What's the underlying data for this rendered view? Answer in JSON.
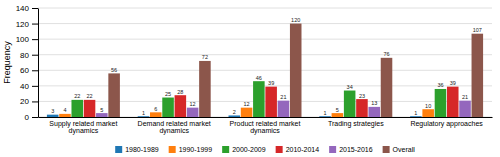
{
  "chart_data": {
    "type": "bar",
    "y_label": "Frequency",
    "categories": [
      "Supply related market dynamics",
      "Demand related market dynamics",
      "Product related market dynamics",
      "Trading strategies",
      "Regulatory approaches"
    ],
    "series": [
      {
        "name": "1980-1989",
        "values": [
          3,
          1,
          2,
          1,
          1
        ]
      },
      {
        "name": "1990-1999",
        "values": [
          4,
          6,
          12,
          5,
          10
        ]
      },
      {
        "name": "2000-2009",
        "values": [
          22,
          25,
          46,
          34,
          36
        ]
      },
      {
        "name": "2010-2014",
        "values": [
          22,
          28,
          39,
          23,
          39
        ]
      },
      {
        "name": "2015-2016",
        "values": [
          5,
          12,
          21,
          13,
          21
        ]
      },
      {
        "name": "Overall",
        "values": [
          56,
          72,
          120,
          76,
          107
        ]
      }
    ],
    "ylim": [
      0,
      140
    ],
    "yticks": [
      0,
      20,
      40,
      60,
      80,
      100,
      120,
      140
    ],
    "grid": true,
    "legend": "bottom",
    "data_labels": true
  }
}
